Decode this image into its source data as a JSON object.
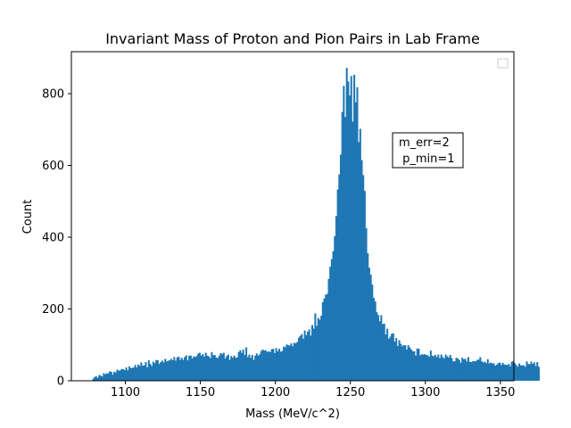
{
  "chart_data": {
    "type": "bar",
    "title": "Invariant Mass of Proton and Pion Pairs in Lab Frame",
    "xlabel": "Mass (MeV/c^2)",
    "ylabel": "Count",
    "xlim": [
      1064,
      1359
    ],
    "ylim": [
      0,
      917
    ],
    "x_ticks": [
      1100,
      1150,
      1200,
      1250,
      1300,
      1350
    ],
    "y_ticks": [
      0,
      200,
      400,
      600,
      800
    ],
    "bin_start": 1078,
    "bin_width": 1,
    "bar_color": "#1f77b4",
    "legend": {
      "placement": "top-right",
      "entries": []
    },
    "annotation": {
      "lines": [
        "m_err=2",
        " p_min=1"
      ],
      "placement": "upper-right"
    },
    "grid": false,
    "values": [
      6,
      11,
      12,
      8,
      16,
      14,
      12,
      21,
      18,
      21,
      20,
      26,
      25,
      17,
      25,
      23,
      31,
      28,
      29,
      33,
      32,
      30,
      37,
      29,
      40,
      35,
      36,
      37,
      44,
      37,
      45,
      41,
      51,
      42,
      43,
      52,
      37,
      57,
      47,
      41,
      53,
      49,
      58,
      57,
      47,
      52,
      56,
      51,
      61,
      54,
      56,
      57,
      61,
      57,
      66,
      56,
      65,
      67,
      58,
      64,
      58,
      66,
      71,
      57,
      70,
      70,
      62,
      68,
      66,
      69,
      76,
      78,
      70,
      74,
      67,
      78,
      70,
      68,
      63,
      80,
      71,
      72,
      65,
      63,
      70,
      77,
      74,
      78,
      62,
      69,
      73,
      58,
      69,
      64,
      70,
      64,
      65,
      80,
      85,
      78,
      87,
      72,
      93,
      66,
      73,
      64,
      72,
      58,
      70,
      76,
      70,
      74,
      83,
      87,
      84,
      85,
      80,
      82,
      80,
      88,
      89,
      77,
      91,
      82,
      89,
      81,
      83,
      95,
      93,
      101,
      99,
      98,
      104,
      96,
      106,
      104,
      108,
      120,
      125,
      130,
      117,
      140,
      127,
      137,
      143,
      126,
      155,
      145,
      188,
      153,
      175,
      170,
      181,
      219,
      229,
      240,
      242,
      284,
      318,
      339,
      361,
      403,
      459,
      533,
      575,
      630,
      749,
      822,
      735,
      872,
      834,
      795,
      849,
      722,
      853,
      776,
      818,
      665,
      702,
      615,
      573,
      529,
      425,
      355,
      315,
      296,
      268,
      231,
      221,
      191,
      183,
      166,
      183,
      158,
      159,
      129,
      145,
      117,
      123,
      131,
      132,
      109,
      119,
      97,
      113,
      103,
      96,
      99,
      99,
      87,
      99,
      93,
      87,
      82,
      82,
      70,
      90,
      89,
      71,
      74,
      73,
      74,
      72,
      71,
      67,
      84,
      70,
      68,
      72,
      66,
      73,
      63,
      73,
      66,
      62,
      73,
      68,
      65,
      72,
      63,
      54,
      54,
      64,
      62,
      58,
      50,
      64,
      60,
      61,
      54,
      66,
      53,
      52,
      54,
      55,
      54,
      58,
      59,
      66,
      54,
      51,
      53,
      49,
      60,
      48,
      51,
      48,
      49,
      42,
      45,
      49,
      51,
      44,
      50,
      45,
      45,
      43,
      47,
      40,
      53,
      55,
      49,
      44,
      39,
      48,
      43,
      43,
      43,
      39,
      54,
      47,
      46,
      53,
      47,
      51,
      41,
      52,
      39
    ]
  }
}
